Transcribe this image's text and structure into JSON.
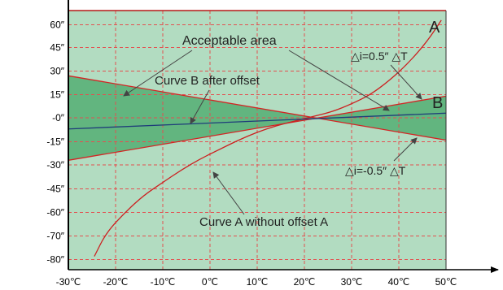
{
  "chart_data": {
    "type": "line",
    "title": "",
    "xlabel": "",
    "ylabel": "",
    "xlim": [
      -30,
      50
    ],
    "x_ticks": [
      -30,
      -20,
      -10,
      0,
      10,
      20,
      30,
      40,
      50
    ],
    "x_tick_labels": [
      "-30℃",
      "-20℃",
      "-10℃",
      "0℃",
      "10℃",
      "20℃",
      "30℃",
      "40℃",
      "50℃"
    ],
    "y_tick_labels": [
      "60″",
      "45″",
      "30″",
      "15″",
      "-0″",
      "-15″",
      "-30″",
      "-45″",
      "-60″",
      "-70″",
      "-80″"
    ],
    "grid": true,
    "grid_style": "dashed",
    "colors": {
      "plot_background": "#b2dcc1",
      "acceptable_area": "#62b57f",
      "grid": "#e35050",
      "boundary_lines": "#d42424",
      "curve_a": "#cc2020",
      "curve_b": "#1f3d7a",
      "frame": "#000000"
    },
    "series": [
      {
        "name": "△i=0.5″ △T",
        "x": [
          -30,
          50
        ],
        "y": [
          27,
          -14
        ]
      },
      {
        "name": "△i=-0.5″ △T",
        "x": [
          -30,
          50
        ],
        "y": [
          -27,
          14
        ]
      },
      {
        "name": "A",
        "x": [
          -24.5,
          -22,
          -18,
          -14,
          -10,
          -6,
          -2,
          2,
          6,
          10,
          14,
          18,
          22,
          26,
          30,
          34,
          38,
          42,
          46,
          49
        ],
        "y": [
          -88,
          -73,
          -60,
          -49,
          -41,
          -33,
          -26,
          -20,
          -14,
          -9,
          -5,
          -2,
          1,
          4,
          9,
          15,
          24,
          35,
          49,
          63
        ]
      },
      {
        "name": "B",
        "x": [
          -30,
          50
        ],
        "y": [
          -7,
          3
        ]
      }
    ],
    "fill_region": {
      "name": "Acceptable area",
      "between": [
        "△i=0.5″ △T",
        "△i=-0.5″ △T"
      ]
    },
    "annotations": [
      {
        "text": "Acceptable area"
      },
      {
        "text": "Curve B after offset"
      },
      {
        "text": "Curve A without offset A"
      },
      {
        "text": "△i=0.5″ △T"
      },
      {
        "text": "△i=-0.5″ △T"
      },
      {
        "text": "A"
      },
      {
        "text": "B"
      }
    ]
  }
}
